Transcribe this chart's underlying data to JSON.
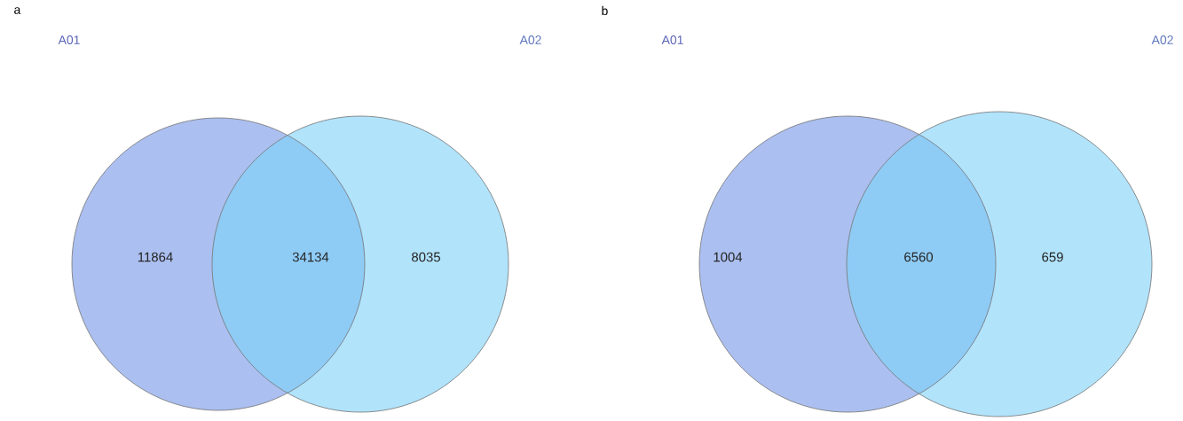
{
  "chart_data": [
    {
      "type": "other",
      "title": "a",
      "categories": [
        "A01",
        null,
        "A02"
      ],
      "values": [
        11864,
        34134,
        8035
      ],
      "data_labels": true,
      "colors": [
        "#abbff0",
        "#8ecbf5",
        "#b1e3fb"
      ]
    },
    {
      "type": "other",
      "title": "b",
      "categories": [
        "A01",
        null,
        "A02"
      ],
      "values": [
        1004,
        6560,
        659
      ],
      "data_labels": true,
      "colors": [
        "#abbff0",
        "#8ecbf5",
        "#b1e3fb"
      ]
    }
  ]
}
